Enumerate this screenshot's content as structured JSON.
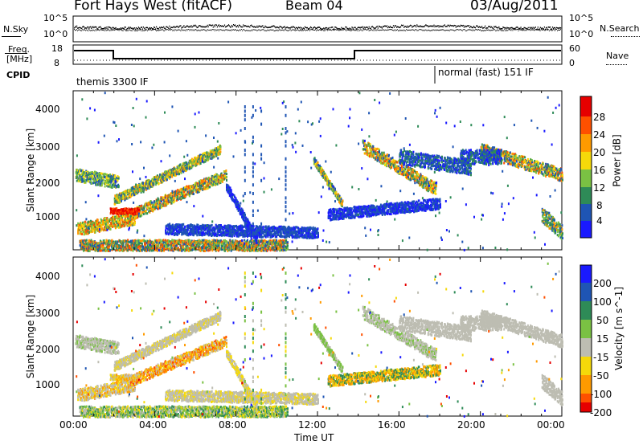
{
  "header": {
    "station": "Fort Hays West (fitACF)",
    "beam": "Beam 04",
    "date": "03/Aug/2011"
  },
  "panels": {
    "nsky": {
      "left_label": "N.Sky",
      "left_ticks": [
        "10^5",
        "10^0"
      ],
      "right_ticks": [
        "10^5",
        "10^0"
      ],
      "right_label": "N.Search"
    },
    "freq": {
      "left_label_line1": "Freq.",
      "left_label_line2": "[MHz]",
      "left_ticks": [
        "18",
        "8"
      ],
      "right_ticks": [
        "60",
        "0"
      ],
      "right_label": "Nave"
    },
    "cpid": {
      "label": "CPID",
      "modes": [
        "themis 3300 IF",
        "normal (fast) 151 IF"
      ]
    }
  },
  "chart_data": [
    {
      "type": "heatmap",
      "name": "power",
      "ylabel": "Slant Range [km]",
      "yticks": [
        "1000",
        "2000",
        "3000",
        "4000"
      ],
      "ylim": [
        200,
        4600
      ],
      "xlim": [
        0,
        24
      ],
      "colorbar_label": "Power [dB]",
      "colorbar_ticks": [
        "4",
        "8",
        "12",
        "16",
        "20",
        "24",
        "28"
      ],
      "colors": [
        "#1a1aff",
        "#1f55b4",
        "#2e8b57",
        "#7ac143",
        "#f5d90a",
        "#ff9a00",
        "#ff5000",
        "#e60000"
      ]
    },
    {
      "type": "heatmap",
      "name": "velocity",
      "ylabel": "Slant Range [km]",
      "yticks": [
        "1000",
        "2000",
        "3000",
        "4000"
      ],
      "ylim": [
        200,
        4600
      ],
      "xlim": [
        0,
        24
      ],
      "colorbar_label": "Velocity [m s^-1]",
      "colorbar_ticks": [
        "200",
        "100",
        "50",
        "15",
        "-15",
        "-50",
        "-100",
        "-200"
      ],
      "colors": [
        "#1a1aff",
        "#1f55b4",
        "#2e8b57",
        "#7ac143",
        "#bdbdb2",
        "#f5d90a",
        "#ff9a00",
        "#ff5000",
        "#e60000"
      ],
      "xticks": [
        "00:00",
        "04:00",
        "08:00",
        "12:00",
        "16:00",
        "20:00",
        "00:00"
      ],
      "xlabel": "Time UT"
    }
  ]
}
